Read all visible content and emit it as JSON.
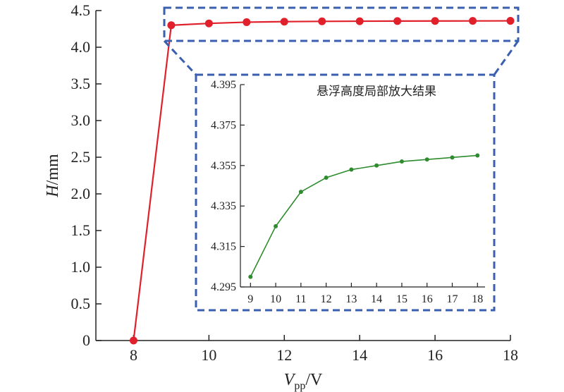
{
  "colors": {
    "main_series": "#e0202a",
    "inset_series": "#2e8b2e",
    "zoom_box": "#3a5fb0",
    "axis": "#222222"
  },
  "chart_data": [
    {
      "type": "line",
      "xlabel_main": "V",
      "xlabel_sub": "pp",
      "xlabel_unit": "/V",
      "ylabel_italic": "H",
      "ylabel_unit": "/mm",
      "xlim": [
        7,
        18
      ],
      "ylim": [
        0,
        4.5
      ],
      "xticks": [
        8,
        10,
        12,
        14,
        16,
        18
      ],
      "xtick_labels": [
        "8",
        "10",
        "12",
        "14",
        "16",
        "18"
      ],
      "yticks": [
        0,
        0.5,
        1.0,
        1.5,
        2.0,
        2.5,
        3.0,
        3.5,
        4.0,
        4.5
      ],
      "ytick_labels": [
        "0",
        "0.5",
        "1.0",
        "1.5",
        "2.0",
        "2.5",
        "3.0",
        "3.5",
        "4.0",
        "4.5"
      ],
      "grid": false,
      "series": [
        {
          "x": [
            8,
            9,
            10,
            11,
            12,
            13,
            14,
            15,
            16,
            17,
            18
          ],
          "y": [
            0,
            4.3,
            4.325,
            4.342,
            4.349,
            4.353,
            4.355,
            4.357,
            4.358,
            4.359,
            4.36
          ]
        }
      ]
    },
    {
      "type": "line",
      "title": "悬浮高度局部放大结果",
      "xlim": [
        8.6,
        18.3
      ],
      "ylim": [
        4.295,
        4.395
      ],
      "xticks": [
        9,
        10,
        11,
        12,
        13,
        14,
        15,
        16,
        17,
        18
      ],
      "xtick_labels": [
        "9",
        "10",
        "11",
        "12",
        "13",
        "14",
        "15",
        "16",
        "17",
        "18"
      ],
      "yticks": [
        4.295,
        4.315,
        4.335,
        4.355,
        4.375,
        4.395
      ],
      "ytick_labels": [
        "4.295",
        "4.315",
        "4.335",
        "4.355",
        "4.375",
        "4.395"
      ],
      "grid": false,
      "series": [
        {
          "x": [
            9,
            10,
            11,
            12,
            13,
            14,
            15,
            16,
            17,
            18
          ],
          "y": [
            4.3,
            4.325,
            4.342,
            4.349,
            4.353,
            4.355,
            4.357,
            4.358,
            4.359,
            4.36
          ]
        }
      ]
    }
  ]
}
